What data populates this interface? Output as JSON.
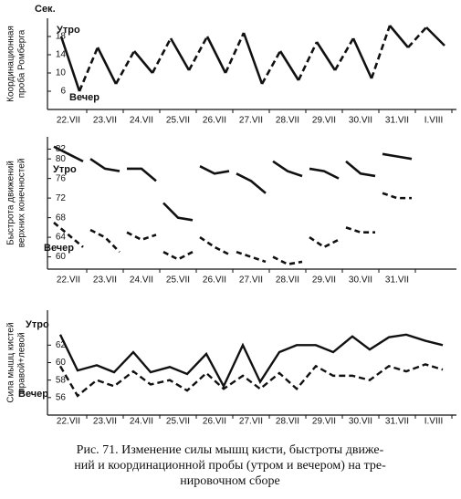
{
  "chart_data": [
    {
      "type": "line",
      "y_unit": "Сек.",
      "y_label": [
        "Координационная",
        "проба Ромберга"
      ],
      "categories": [
        "22.VII",
        "23.VII",
        "24.VII",
        "25.VII",
        "26.VII",
        "27.VII",
        "28.VII",
        "29.VII",
        "30.VII",
        "31.VII",
        "I.VIII"
      ],
      "ylim": [
        2,
        22
      ],
      "yticks": [
        6,
        10,
        14,
        18
      ],
      "series": [
        {
          "name": "Утро",
          "color": "#111",
          "values": [
            18,
            15.6,
            14.8,
            17.6,
            18,
            18.8,
            14.8,
            16.8,
            17.6,
            20.4,
            20
          ]
        },
        {
          "name": "Вечер",
          "color": "#111",
          "values": [
            6,
            7.6,
            10,
            10.6,
            10,
            7.6,
            8.4,
            10.6,
            8.8,
            15.6,
            16
          ]
        }
      ]
    },
    {
      "type": "line",
      "y_label": [
        "Быстрота движений",
        "верхних конечностей"
      ],
      "categories": [
        "22.VII",
        "23.VII",
        "24.VII",
        "25.VII",
        "26.VII",
        "27.VII",
        "28.VII",
        "29.VII",
        "30.VII",
        "31.VII"
      ],
      "ylim": [
        57.5,
        84.5
      ],
      "yticks": [
        60,
        64,
        68,
        72,
        76,
        80,
        82
      ],
      "series": [
        {
          "name": "Утро",
          "color": "#111",
          "dashed": false,
          "values": [
            [
              82.5,
              81,
              79.5
            ],
            [
              80,
              78,
              77.5
            ],
            [
              78,
              78,
              75.5
            ],
            [
              71,
              68,
              67.5
            ],
            [
              78.5,
              77,
              77.5
            ],
            [
              77,
              75.5,
              73
            ],
            [
              79.5,
              77.5,
              76.5
            ],
            [
              78,
              77.5,
              76
            ],
            [
              79.5,
              77,
              76.5
            ],
            [
              81,
              80.5,
              80
            ]
          ]
        },
        {
          "name": "Вечер",
          "color": "#111",
          "dashed": true,
          "values": [
            [
              67,
              64.5,
              62
            ],
            [
              65.5,
              64,
              61
            ],
            [
              65,
              63.5,
              64.5
            ],
            [
              61,
              59.5,
              61
            ],
            [
              64,
              62,
              60.5
            ],
            [
              61,
              60,
              59
            ],
            [
              60,
              58.5,
              59
            ],
            [
              64,
              62,
              63.5
            ],
            [
              66,
              65,
              65
            ],
            [
              73,
              72,
              72
            ]
          ]
        }
      ]
    },
    {
      "type": "line",
      "y_label": [
        "Сила мышц кистей",
        "правой+левой"
      ],
      "categories": [
        "22.VII",
        "23.VII",
        "24.VII",
        "25.VII",
        "26.VII",
        "27.VII",
        "28.VII",
        "29.VII",
        "30.VII",
        "31.VII",
        "I.VIII"
      ],
      "ylim": [
        54,
        66
      ],
      "yticks": [
        56,
        58,
        60,
        62
      ],
      "series": [
        {
          "name": "Утро",
          "color": "#111",
          "dashed": false,
          "values": [
            [
              63.2,
              59.1
            ],
            [
              59.7,
              58.9
            ],
            [
              61.2,
              58.9
            ],
            [
              59.5,
              58.7
            ],
            [
              61,
              57.3
            ],
            [
              62,
              57.8
            ],
            [
              61.2,
              62
            ],
            [
              62,
              61.2
            ],
            [
              63,
              61.5
            ],
            [
              62.9,
              63.2
            ],
            [
              62.5,
              62
            ]
          ]
        },
        {
          "name": "Вечер",
          "color": "#111",
          "dashed": true,
          "values": [
            [
              59.6,
              56.2
            ],
            [
              58,
              57.3
            ],
            [
              59,
              57.5
            ],
            [
              58,
              56.8
            ],
            [
              58.8,
              57
            ],
            [
              58.5,
              57
            ],
            [
              58.8,
              57
            ],
            [
              59.6,
              58.5
            ],
            [
              58.5,
              58
            ],
            [
              59.6,
              59
            ],
            [
              59.8,
              59.2
            ]
          ]
        }
      ]
    }
  ],
  "caption": [
    "Рис. 71. Изменение силы мышц кисти, быстроты движе-",
    "ний и координационной пробы (утром и вечером) на тре-",
    "нировочном сборе"
  ]
}
